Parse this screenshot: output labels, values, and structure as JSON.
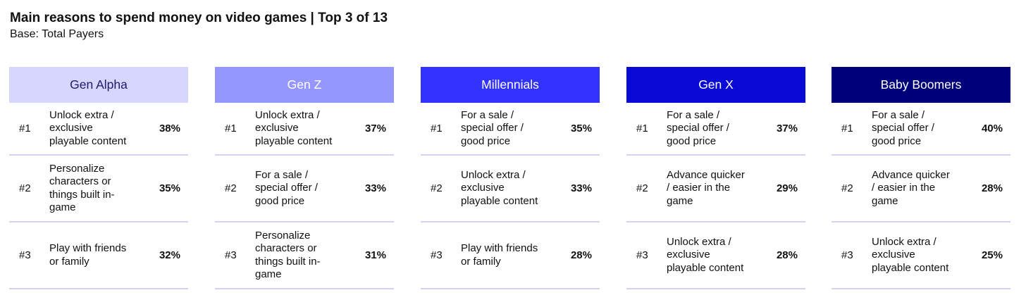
{
  "title": "Main reasons to spend money on video games | Top 3 of 13",
  "subtitle": "Base: Total Payers",
  "colors": {
    "Gen Alpha": "#d6d6ff",
    "Gen Z": "#9696ff",
    "Millennials": "#3333ff",
    "Gen X": "#0a0ad6",
    "Baby Boomers": "#00007a"
  },
  "panels": [
    {
      "name": "Gen Alpha",
      "rows": [
        {
          "rank": "#1",
          "label": "Unlock extra /\nexclusive\nplayable content",
          "pct": "38%"
        },
        {
          "rank": "#2",
          "label": "Personalize\ncharacters or\nthings built in-\ngame",
          "pct": "35%"
        },
        {
          "rank": "#3",
          "label": "Play with friends\nor family",
          "pct": "32%"
        }
      ]
    },
    {
      "name": "Gen Z",
      "rows": [
        {
          "rank": "#1",
          "label": "Unlock extra /\nexclusive\nplayable content",
          "pct": "37%"
        },
        {
          "rank": "#2",
          "label": "For a sale /\nspecial offer /\ngood price",
          "pct": "33%"
        },
        {
          "rank": "#3",
          "label": "Personalize\ncharacters or\nthings built in-\ngame",
          "pct": "31%"
        }
      ]
    },
    {
      "name": "Millennials",
      "rows": [
        {
          "rank": "#1",
          "label": "For a sale /\nspecial offer /\ngood price",
          "pct": "35%"
        },
        {
          "rank": "#2",
          "label": "Unlock extra /\nexclusive\nplayable content",
          "pct": "33%"
        },
        {
          "rank": "#3",
          "label": "Play with friends\nor family",
          "pct": "28%"
        }
      ]
    },
    {
      "name": "Gen X",
      "rows": [
        {
          "rank": "#1",
          "label": "For a sale /\nspecial offer /\ngood price",
          "pct": "37%"
        },
        {
          "rank": "#2",
          "label": "Advance quicker\n/ easier in the\ngame",
          "pct": "29%"
        },
        {
          "rank": "#3",
          "label": "Unlock extra /\nexclusive\nplayable content",
          "pct": "28%"
        }
      ]
    },
    {
      "name": "Baby Boomers",
      "rows": [
        {
          "rank": "#1",
          "label": "For a sale /\nspecial offer /\ngood price",
          "pct": "40%"
        },
        {
          "rank": "#2",
          "label": "Advance quicker\n/ easier in the\ngame",
          "pct": "28%"
        },
        {
          "rank": "#3",
          "label": "Unlock extra /\nexclusive\nplayable content",
          "pct": "25%"
        }
      ]
    }
  ]
}
